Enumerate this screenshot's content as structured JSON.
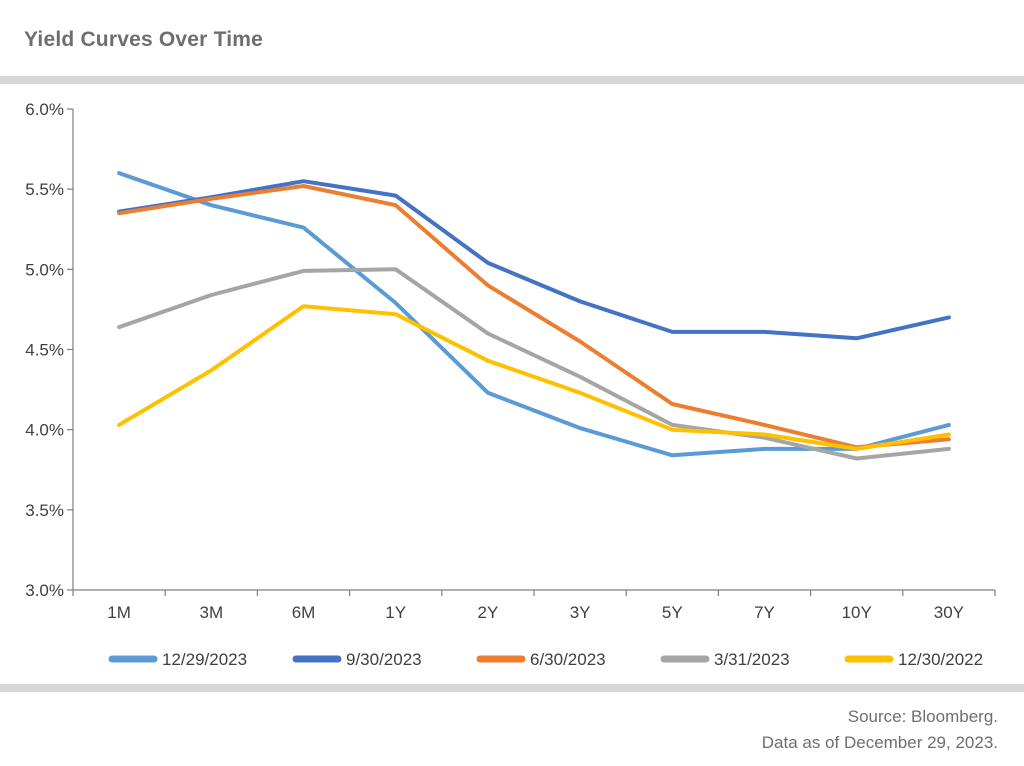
{
  "page": {
    "title": "Yield Curves Over Time",
    "source": "Source: Bloomberg.",
    "as_of": "Data as of December 29, 2023."
  },
  "chart_data": {
    "type": "line",
    "title": "Yield Curves Over Time",
    "xlabel": "",
    "ylabel": "",
    "categories": [
      "1M",
      "3M",
      "6M",
      "1Y",
      "2Y",
      "3Y",
      "5Y",
      "7Y",
      "10Y",
      "30Y"
    ],
    "ylim": [
      3.0,
      6.0
    ],
    "yticks": [
      3.0,
      3.5,
      4.0,
      4.5,
      5.0,
      5.5,
      6.0
    ],
    "ytick_labels": [
      "3.0%",
      "3.5%",
      "4.0%",
      "4.5%",
      "5.0%",
      "5.5%",
      "6.0%"
    ],
    "grid": false,
    "legend_position": "bottom",
    "series": [
      {
        "name": "12/29/2023",
        "color": "#5b9bd5",
        "values": [
          5.6,
          5.4,
          5.26,
          4.79,
          4.23,
          4.01,
          3.84,
          3.88,
          3.88,
          4.03
        ]
      },
      {
        "name": "9/30/2023",
        "color": "#4472c4",
        "values": [
          5.36,
          5.45,
          5.55,
          5.46,
          5.04,
          4.8,
          4.61,
          4.61,
          4.57,
          4.7
        ]
      },
      {
        "name": "6/30/2023",
        "color": "#ed7d31",
        "values": [
          5.35,
          5.44,
          5.52,
          5.4,
          4.9,
          4.55,
          4.16,
          4.03,
          3.89,
          3.94
        ]
      },
      {
        "name": "3/31/2023",
        "color": "#a5a5a5",
        "values": [
          4.64,
          4.84,
          4.99,
          5.0,
          4.6,
          4.33,
          4.03,
          3.95,
          3.82,
          3.88
        ]
      },
      {
        "name": "12/30/2022",
        "color": "#ffc000",
        "values": [
          4.03,
          4.37,
          4.77,
          4.72,
          4.43,
          4.23,
          4.0,
          3.97,
          3.88,
          3.97
        ]
      }
    ]
  }
}
